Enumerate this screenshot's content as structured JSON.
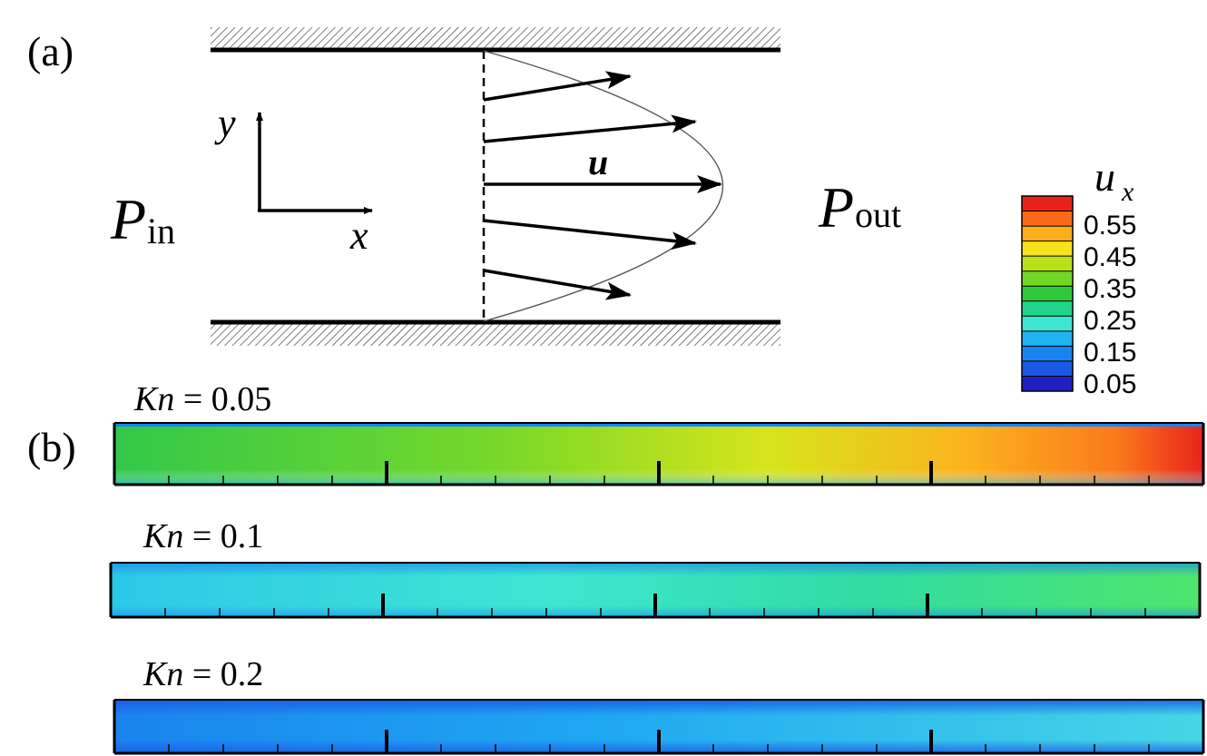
{
  "panel_a": {
    "label": "(a)",
    "inlet": {
      "symbol": "P",
      "subscript": "in"
    },
    "outlet": {
      "symbol": "P",
      "subscript": "out"
    },
    "axis_y": "y",
    "axis_x": "x",
    "velocity_label": "u"
  },
  "colorbar": {
    "title_symbol": "u",
    "title_subscript": "x",
    "tick_labels": [
      "0.55",
      "0.45",
      "0.35",
      "0.25",
      "0.15",
      "0.05"
    ],
    "level_colors": [
      "#e8231c",
      "#fb6a18",
      "#fdae1c",
      "#f5e21e",
      "#b8e11a",
      "#72d625",
      "#2fc83a",
      "#22d48a",
      "#3ee6d2",
      "#1fb4f0",
      "#1a84ee",
      "#1858e4",
      "#2020c0"
    ]
  },
  "panel_b": {
    "label": "(b)",
    "strips": [
      {
        "kn_symbol": "Kn",
        "kn_text": " = 0.05",
        "max_color": "#e8231c"
      },
      {
        "kn_symbol": "Kn",
        "kn_text": " = 0.1",
        "max_color": "#4fe46c"
      },
      {
        "kn_symbol": "Kn",
        "kn_text": " = 0.2",
        "max_color": "#46d6e6"
      }
    ]
  }
}
